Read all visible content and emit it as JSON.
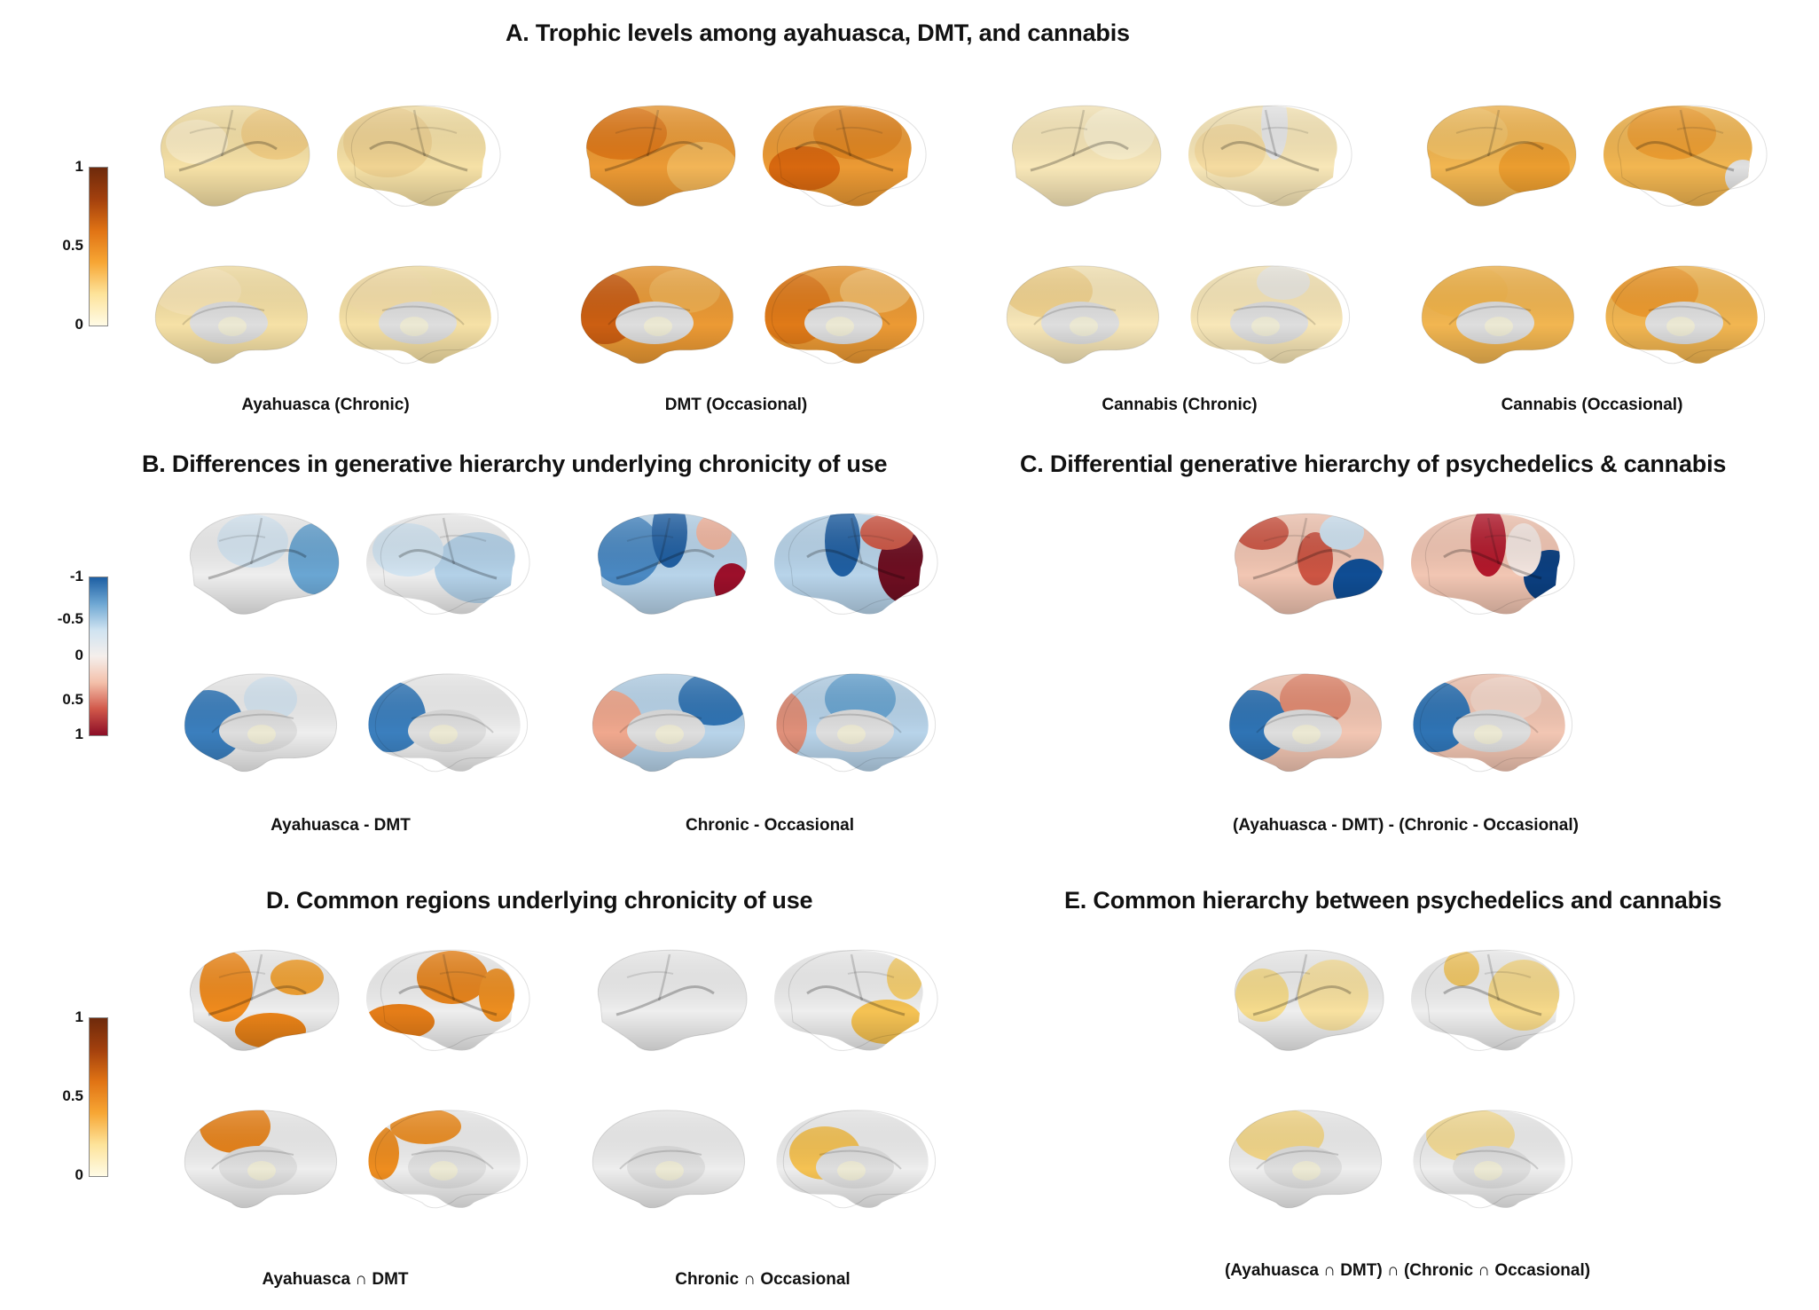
{
  "panels": {
    "a": {
      "title": "A. Trophic levels among ayahuasca, DMT, and cannabis",
      "captions": [
        "Ayahuasca (Chronic)",
        "DMT (Occasional)",
        "Cannabis (Chronic)",
        "Cannabis (Occasional)"
      ]
    },
    "b": {
      "title": "B. Differences in generative hierarchy underlying chronicity of use",
      "captions": [
        "Ayahuasca - DMT",
        "Chronic - Occasional"
      ]
    },
    "c": {
      "title": "C. Differential generative hierarchy of psychedelics & cannabis",
      "captions": [
        "(Ayahuasca - DMT) - (Chronic - Occasional)"
      ]
    },
    "d": {
      "title": "D. Common regions underlying chronicity of use",
      "captions": [
        "Ayahuasca ∩ DMT",
        "Chronic ∩ Occasional"
      ]
    },
    "e": {
      "title": "E. Common hierarchy between psychedelics and cannabis",
      "captions": [
        "(Ayahuasca ∩ DMT) ∩ (Chronic ∩ Occasional)"
      ]
    }
  },
  "colorbars": {
    "sequential_top": {
      "ticks": [
        "1",
        "0.5",
        "0"
      ],
      "colors": [
        "#fffbe6",
        "#fde39a",
        "#f7a634",
        "#e07314",
        "#a3400d",
        "#6e2a0c"
      ]
    },
    "diverging": {
      "ticks": [
        "-1",
        "-0.5",
        "0",
        "0.5",
        "1"
      ],
      "colors": [
        "#1d5fa3",
        "#6ea7d3",
        "#cfe3f1",
        "#f5efec",
        "#f3c0aa",
        "#d1584a",
        "#8c0d26"
      ]
    },
    "sequential_bottom": {
      "ticks": [
        "1",
        "0.5",
        "0"
      ],
      "colors": [
        "#fffbe6",
        "#fde39a",
        "#f7a634",
        "#e07314",
        "#a3400d",
        "#6e2a0c"
      ]
    }
  }
}
